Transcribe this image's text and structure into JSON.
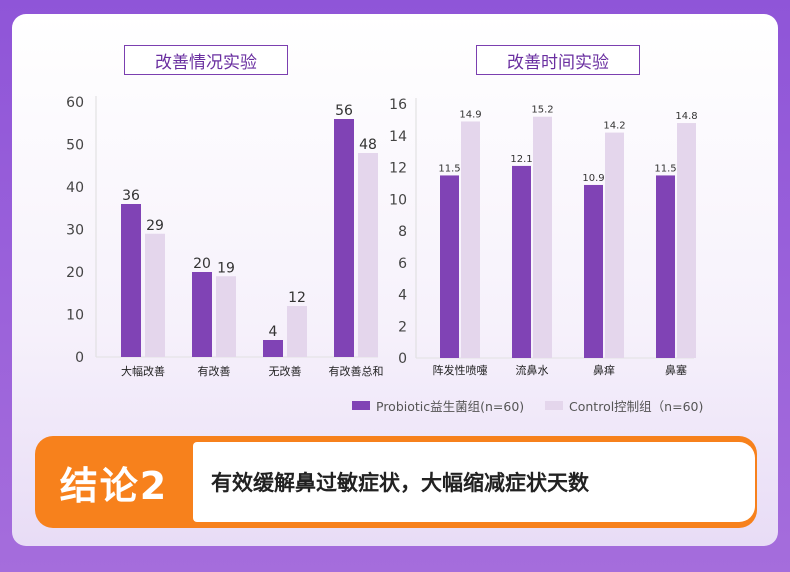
{
  "colors": {
    "probiotic": "#8043b5",
    "control": "#e4d6ec",
    "conclusion_accent": "#f7811c"
  },
  "chart_data": [
    {
      "type": "bar",
      "title": "改善情况实验",
      "categories": [
        "大幅改善",
        "有改善",
        "无改善",
        "有改善总和"
      ],
      "series": [
        {
          "name": "Probiotic益生菌组(n=60)",
          "values": [
            36,
            20,
            4,
            56
          ]
        },
        {
          "name": "Control控制组（n=60)",
          "values": [
            29,
            19,
            12,
            48
          ]
        }
      ],
      "yticks": [
        "0",
        "10",
        "20",
        "30",
        "40",
        "50",
        "60"
      ],
      "ylim": [
        0,
        60
      ],
      "labels": [
        [
          "36",
          "20",
          "4",
          "56"
        ],
        [
          "29",
          "19",
          "12",
          "48"
        ]
      ]
    },
    {
      "type": "bar",
      "title": "改善时间实验",
      "categories": [
        "阵发性喷嚏",
        "流鼻水",
        "鼻痒",
        "鼻塞"
      ],
      "series": [
        {
          "name": "Probiotic益生菌组(n=60)",
          "values": [
            11.5,
            12.1,
            10.9,
            11.5
          ]
        },
        {
          "name": "Control控制组（n=60)",
          "values": [
            14.9,
            15.2,
            14.2,
            14.8
          ]
        }
      ],
      "yticks": [
        "0",
        "2",
        "4",
        "6",
        "8",
        "10",
        "12",
        "14",
        "16"
      ],
      "ylim": [
        0,
        16
      ],
      "labels": [
        [
          "11.5",
          "12.1",
          "10.9",
          "11.5"
        ],
        [
          "14.9",
          "15.2",
          "14.2",
          "14.8"
        ]
      ]
    }
  ],
  "legend": {
    "probiotic": "Probiotic益生菌组(n=60)",
    "control": "Control控制组（n=60)"
  },
  "conclusion": {
    "tag": "结论2",
    "text": "有效缓解鼻过敏症状，大幅缩减症状天数"
  }
}
